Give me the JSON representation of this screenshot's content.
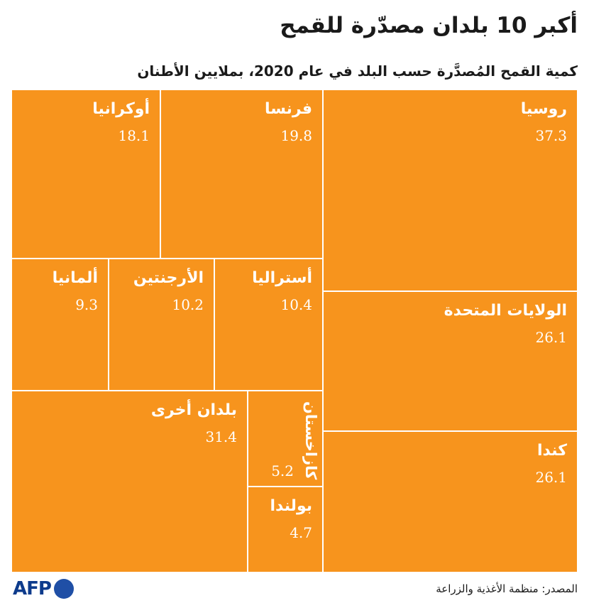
{
  "title": "أكبر 10 بلدان مصدّرة للقمح",
  "subtitle": "كمية القمح المُصدَّرة حسب البلد في عام 2020، بملايين الأطنان",
  "chart_data": {
    "type": "treemap",
    "title": "أكبر 10 بلدان مصدّرة للقمح",
    "subtitle": "كمية القمح المُصدَّرة حسب البلد في عام 2020، بملايين الأطنان",
    "colors": {
      "tile": "#f7941d",
      "border": "#ffffff"
    },
    "items": [
      {
        "label": "روسيا",
        "value": 37.3,
        "value_text": "37.3"
      },
      {
        "label": "الولايات المتحدة",
        "value": 26.1,
        "value_text": "26.1"
      },
      {
        "label": "كندا",
        "value": 26.1,
        "value_text": "26.1"
      },
      {
        "label": "فرنسا",
        "value": 19.8,
        "value_text": "19.8"
      },
      {
        "label": "أوكرانيا",
        "value": 18.1,
        "value_text": "18.1"
      },
      {
        "label": "أستراليا",
        "value": 10.4,
        "value_text": "10.4"
      },
      {
        "label": "الأرجنتين",
        "value": 10.2,
        "value_text": "10.2"
      },
      {
        "label": "ألمانيا",
        "value": 9.3,
        "value_text": "9.3"
      },
      {
        "label": "بلدان أخرى",
        "value": 31.4,
        "value_text": "31.4"
      },
      {
        "label": "كازاخستان",
        "value": 5.2,
        "value_text": "5.2"
      },
      {
        "label": "بولندا",
        "value": 4.7,
        "value_text": "4.7"
      }
    ]
  },
  "footer": {
    "source": "المصدر: منظمة الأغذية والزراعة",
    "logo": "AFP",
    "brand_color": "#0d3b8c"
  }
}
